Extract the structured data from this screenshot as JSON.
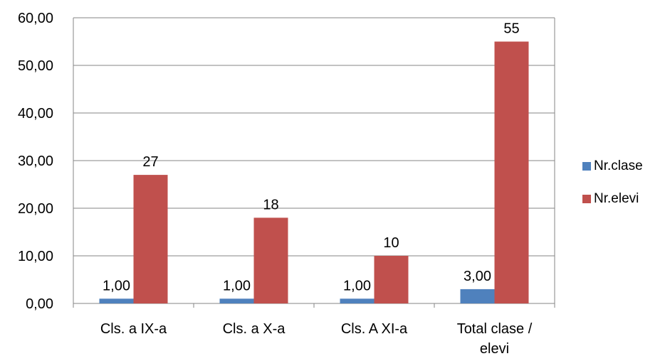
{
  "chart_data": {
    "type": "bar",
    "categories": [
      "Cls. a IX-a",
      "Cls. a X-a",
      "Cls. A XI-a",
      "Total clase / elevi"
    ],
    "series": [
      {
        "name": "Nr.clase",
        "values": [
          1,
          1,
          1,
          3
        ],
        "labels": [
          "1,00",
          "1,00",
          "1,00",
          "3,00"
        ],
        "color": "#4F81BD"
      },
      {
        "name": "Nr.elevi",
        "values": [
          27,
          18,
          10,
          55
        ],
        "labels": [
          "27",
          "18",
          "10",
          "55"
        ],
        "color": "#C0504D"
      }
    ],
    "title": "",
    "xlabel": "",
    "ylabel": "",
    "ylim": [
      0,
      60
    ],
    "yticks": [
      "0,00",
      "10,00",
      "20,00",
      "30,00",
      "40,00",
      "50,00",
      "60,00"
    ],
    "grid": true,
    "legend_position": "right"
  }
}
